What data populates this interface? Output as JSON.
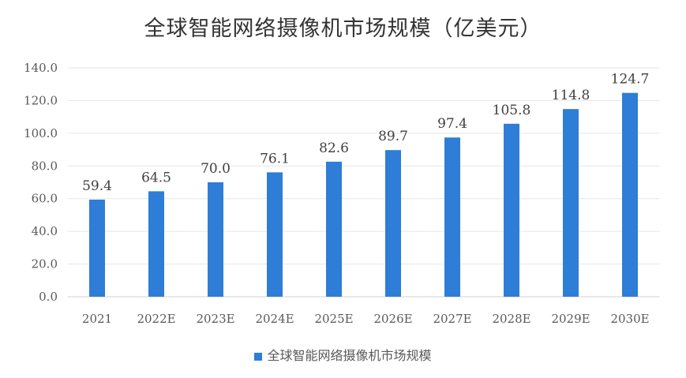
{
  "chart_data": {
    "type": "bar",
    "title": "全球智能网络摄像机市场规模（亿美元）",
    "categories": [
      "2021",
      "2022E",
      "2023E",
      "2024E",
      "2025E",
      "2026E",
      "2027E",
      "2028E",
      "2029E",
      "2030E"
    ],
    "series": [
      {
        "name": "全球智能网络摄像机市场规模",
        "values": [
          59.4,
          64.5,
          70.0,
          76.1,
          82.6,
          89.7,
          97.4,
          105.8,
          114.8,
          124.7
        ],
        "color": "#2e7dd6"
      }
    ],
    "ylim": [
      0,
      140
    ],
    "yticks": [
      "0.0",
      "20.0",
      "40.0",
      "60.0",
      "80.0",
      "100.0",
      "120.0",
      "140.0"
    ],
    "grid": true,
    "legend": "bottom",
    "data_labels": [
      "59.4",
      "64.5",
      "70.0",
      "76.1",
      "82.6",
      "89.7",
      "97.4",
      "105.8",
      "114.8",
      "124.7"
    ]
  }
}
